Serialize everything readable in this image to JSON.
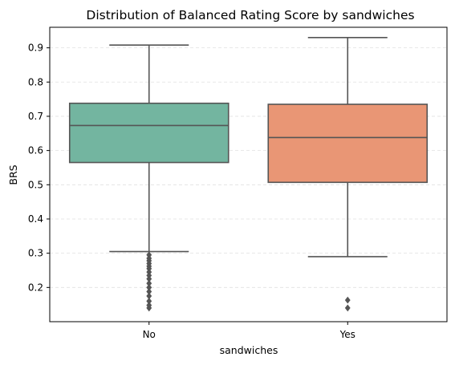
{
  "chart_data": {
    "type": "box",
    "title": "Distribution of Balanced Rating Score by sandwiches",
    "xlabel": "sandwiches",
    "ylabel": "BRS",
    "ylim": [
      0.1,
      0.96
    ],
    "yticks": [
      0.2,
      0.3,
      0.4,
      0.5,
      0.6,
      0.7,
      0.8,
      0.9
    ],
    "grid": "horizontal dashed",
    "categories": [
      "No",
      "Yes"
    ],
    "boxes": [
      {
        "category": "No",
        "color": "#73b5a0",
        "whisker_low": 0.305,
        "q1": 0.565,
        "median": 0.673,
        "q3": 0.738,
        "whisker_high": 0.908,
        "outliers": [
          0.295,
          0.285,
          0.278,
          0.27,
          0.262,
          0.255,
          0.245,
          0.235,
          0.225,
          0.212,
          0.2,
          0.188,
          0.175,
          0.16,
          0.148,
          0.14
        ]
      },
      {
        "category": "Yes",
        "color": "#e99675",
        "whisker_low": 0.29,
        "q1": 0.507,
        "median": 0.638,
        "q3": 0.735,
        "whisker_high": 0.93,
        "outliers": [
          0.163,
          0.14
        ]
      }
    ]
  }
}
